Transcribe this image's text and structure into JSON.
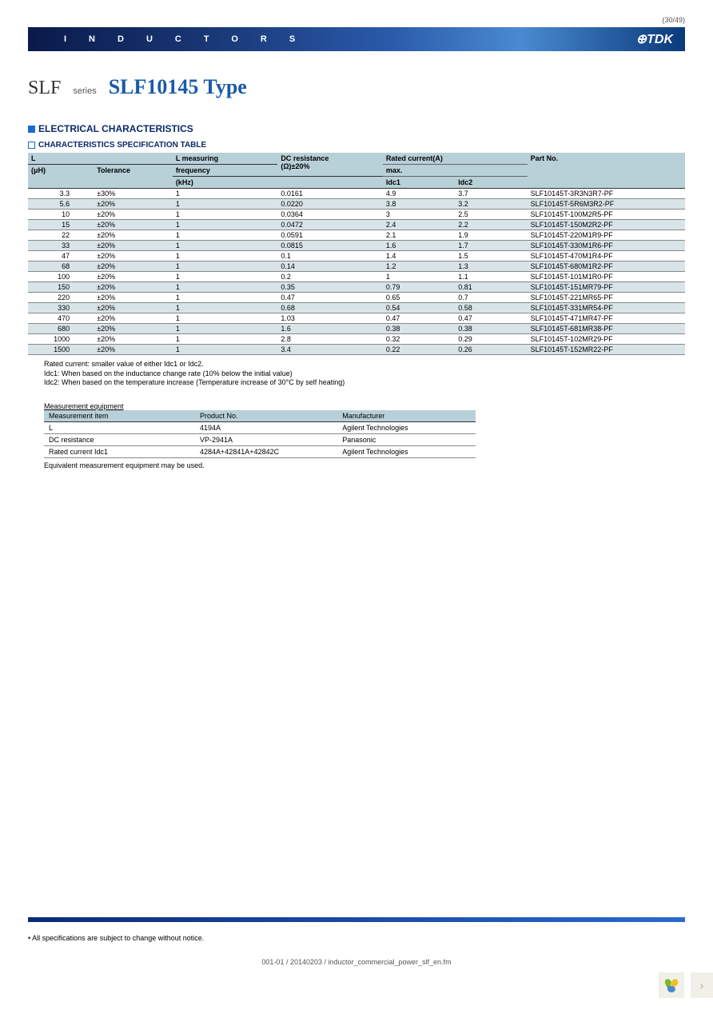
{
  "page_num": "(30/49)",
  "banner": {
    "letters": "INDUCTORS",
    "logo": "⊕TDK"
  },
  "title": {
    "slf": "SLF",
    "series": "series",
    "main": "SLF10145 Type"
  },
  "section": "ELECTRICAL CHARACTERISTICS",
  "subsection": "CHARACTERISTICS SPECIFICATION TABLE",
  "spec_table": {
    "header": {
      "L": "L",
      "uH": "(μH)",
      "tol": "Tolerance",
      "freq1": "L measuring",
      "freq2": "frequency",
      "freq3": "(kHz)",
      "dc1": "DC resistance",
      "dc2": "(Ω)±20%",
      "rated1": "Rated current(A)",
      "rated2": "max.",
      "idc1": "Idc1",
      "idc2": "Idc2",
      "part": "Part No."
    },
    "rows": [
      {
        "L": "3.3",
        "tol": "±30%",
        "freq": "1",
        "dc": "0.0161",
        "idc1": "4.9",
        "idc2": "3.7",
        "part": "SLF10145T-3R3N3R7-PF"
      },
      {
        "L": "5.6",
        "tol": "±20%",
        "freq": "1",
        "dc": "0.0220",
        "idc1": "3.8",
        "idc2": "3.2",
        "part": "SLF10145T-5R6M3R2-PF"
      },
      {
        "L": "10",
        "tol": "±20%",
        "freq": "1",
        "dc": "0.0364",
        "idc1": "3",
        "idc2": "2.5",
        "part": "SLF10145T-100M2R5-PF"
      },
      {
        "L": "15",
        "tol": "±20%",
        "freq": "1",
        "dc": "0.0472",
        "idc1": "2.4",
        "idc2": "2.2",
        "part": "SLF10145T-150M2R2-PF"
      },
      {
        "L": "22",
        "tol": "±20%",
        "freq": "1",
        "dc": "0.0591",
        "idc1": "2.1",
        "idc2": "1.9",
        "part": "SLF10145T-220M1R9-PF"
      },
      {
        "L": "33",
        "tol": "±20%",
        "freq": "1",
        "dc": "0.0815",
        "idc1": "1.6",
        "idc2": "1.7",
        "part": "SLF10145T-330M1R6-PF"
      },
      {
        "L": "47",
        "tol": "±20%",
        "freq": "1",
        "dc": "0.1",
        "idc1": "1.4",
        "idc2": "1.5",
        "part": "SLF10145T-470M1R4-PF"
      },
      {
        "L": "68",
        "tol": "±20%",
        "freq": "1",
        "dc": "0.14",
        "idc1": "1.2",
        "idc2": "1.3",
        "part": "SLF10145T-680M1R2-PF"
      },
      {
        "L": "100",
        "tol": "±20%",
        "freq": "1",
        "dc": "0.2",
        "idc1": "1",
        "idc2": "1.1",
        "part": "SLF10145T-101M1R0-PF"
      },
      {
        "L": "150",
        "tol": "±20%",
        "freq": "1",
        "dc": "0.35",
        "idc1": "0.79",
        "idc2": "0.81",
        "part": "SLF10145T-151MR79-PF"
      },
      {
        "L": "220",
        "tol": "±20%",
        "freq": "1",
        "dc": "0.47",
        "idc1": "0.65",
        "idc2": "0.7",
        "part": "SLF10145T-221MR65-PF"
      },
      {
        "L": "330",
        "tol": "±20%",
        "freq": "1",
        "dc": "0.68",
        "idc1": "0.54",
        "idc2": "0.58",
        "part": "SLF10145T-331MR54-PF"
      },
      {
        "L": "470",
        "tol": "±20%",
        "freq": "1",
        "dc": "1.03",
        "idc1": "0.47",
        "idc2": "0.47",
        "part": "SLF10145T-471MR47-PF"
      },
      {
        "L": "680",
        "tol": "±20%",
        "freq": "1",
        "dc": "1.6",
        "idc1": "0.38",
        "idc2": "0.38",
        "part": "SLF10145T-681MR38-PF"
      },
      {
        "L": "1000",
        "tol": "±20%",
        "freq": "1",
        "dc": "2.8",
        "idc1": "0.32",
        "idc2": "0.29",
        "part": "SLF10145T-102MR29-PF"
      },
      {
        "L": "1500",
        "tol": "±20%",
        "freq": "1",
        "dc": "3.4",
        "idc1": "0.22",
        "idc2": "0.26",
        "part": "SLF10145T-152MR22-PF"
      }
    ]
  },
  "notes": {
    "n1": "Rated current: smaller value of either Idc1 or Idc2.",
    "n2": "Idc1: When based on the inductance change rate (10% below the initial value)",
    "n3": "Idc2: When based on the temperature increase (Temperature increase of 30°C by self heating)"
  },
  "meas_title": "Measurement equipment",
  "meas_table": {
    "header": {
      "item": "Measurement item",
      "prod": "Product No.",
      "mfr": "Manufacturer"
    },
    "rows": [
      {
        "item": "L",
        "prod": "4194A",
        "mfr": "Agilent Technologies"
      },
      {
        "item": "DC resistance",
        "prod": "VP-2941A",
        "mfr": "Panasonic"
      },
      {
        "item": "Rated current Idc1",
        "prod": "4284A+42841A+42842C",
        "mfr": "Agilent Technologies"
      }
    ]
  },
  "meas_note": "Equivalent measurement equipment may be used.",
  "disclaimer": "• All specifications are subject to change without notice.",
  "footer": "001-01 / 20140203 / inductor_commercial_power_slf_en.fm"
}
